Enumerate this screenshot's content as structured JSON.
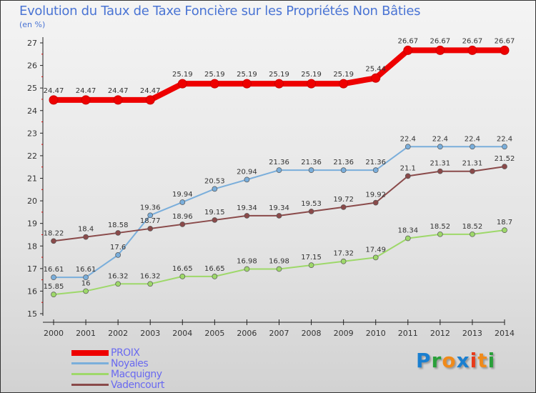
{
  "chart_data": {
    "type": "line",
    "title": "Evolution du Taux de Taxe Foncière sur les Propriétés Non Bâties",
    "ylabel": "(en %)",
    "xlabel": "",
    "x": [
      "2000",
      "2001",
      "2002",
      "2003",
      "2004",
      "2005",
      "2006",
      "2007",
      "2008",
      "2009",
      "2010",
      "2011",
      "2012",
      "2013",
      "2014"
    ],
    "ylim": [
      15,
      27
    ],
    "yticks": [
      15,
      16,
      17,
      18,
      19,
      20,
      21,
      22,
      23,
      24,
      25,
      26,
      27
    ],
    "grid": false,
    "legend_position": "bottom-left",
    "series": [
      {
        "name": "PROIX",
        "color": "#ee0000",
        "values": [
          24.47,
          24.47,
          24.47,
          24.47,
          25.19,
          25.19,
          25.19,
          25.19,
          25.19,
          25.19,
          25.44,
          26.67,
          26.67,
          26.67,
          26.67
        ],
        "labels": [
          "24.47",
          "24.47",
          "24.47",
          "24.47",
          "25.19",
          "25.19",
          "25.19",
          "25.19",
          "25.19",
          "25.19",
          "25.44",
          "26.67",
          "26.67",
          "26.67",
          "26.67"
        ]
      },
      {
        "name": "Noyales",
        "color": "#7aaedb",
        "values": [
          16.61,
          16.61,
          17.6,
          19.36,
          19.94,
          20.53,
          20.94,
          21.36,
          21.36,
          21.36,
          21.36,
          22.4,
          22.4,
          22.4,
          22.4
        ],
        "labels": [
          "16.61",
          "16.61",
          "17.6",
          "19.36",
          "19.94",
          "20.53",
          "20.94",
          "21.36",
          "21.36",
          "21.36",
          "21.36",
          "22.4",
          "22.4",
          "22.4",
          "22.4"
        ]
      },
      {
        "name": "Macquigny",
        "color": "#9ed86a",
        "values": [
          15.85,
          16,
          16.32,
          16.32,
          16.65,
          16.65,
          16.98,
          16.98,
          17.15,
          17.32,
          17.49,
          18.34,
          18.52,
          18.52,
          18.7
        ],
        "labels": [
          "15.85",
          "16",
          "16.32",
          "16.32",
          "16.65",
          "16.65",
          "16.98",
          "16.98",
          "17.15",
          "17.32",
          "17.49",
          "18.34",
          "18.52",
          "18.52",
          "18.7"
        ]
      },
      {
        "name": "Vadencourt",
        "color": "#8a4a4a",
        "values": [
          18.22,
          18.4,
          18.58,
          18.77,
          18.96,
          19.15,
          19.34,
          19.34,
          19.53,
          19.72,
          19.92,
          21.1,
          21.31,
          21.31,
          21.52
        ],
        "labels": [
          "18.22",
          "18.4",
          "18.58",
          "18.77",
          "18.96",
          "19.15",
          "19.34",
          "19.34",
          "19.53",
          "19.72",
          "19.92",
          "21.1",
          "21.31",
          "21.31",
          "21.52"
        ]
      }
    ]
  },
  "logo": {
    "text": "Proxiti",
    "letters": [
      {
        "c": "P",
        "color": "#1a7fd0"
      },
      {
        "c": "r",
        "color": "#2aa03a"
      },
      {
        "c": "o",
        "color": "#f08a1a"
      },
      {
        "c": "x",
        "color": "#1a7fd0"
      },
      {
        "c": "i",
        "color": "#e83a1a"
      },
      {
        "c": "t",
        "color": "#f08a1a"
      },
      {
        "c": "i",
        "color": "#2aa03a"
      }
    ]
  }
}
